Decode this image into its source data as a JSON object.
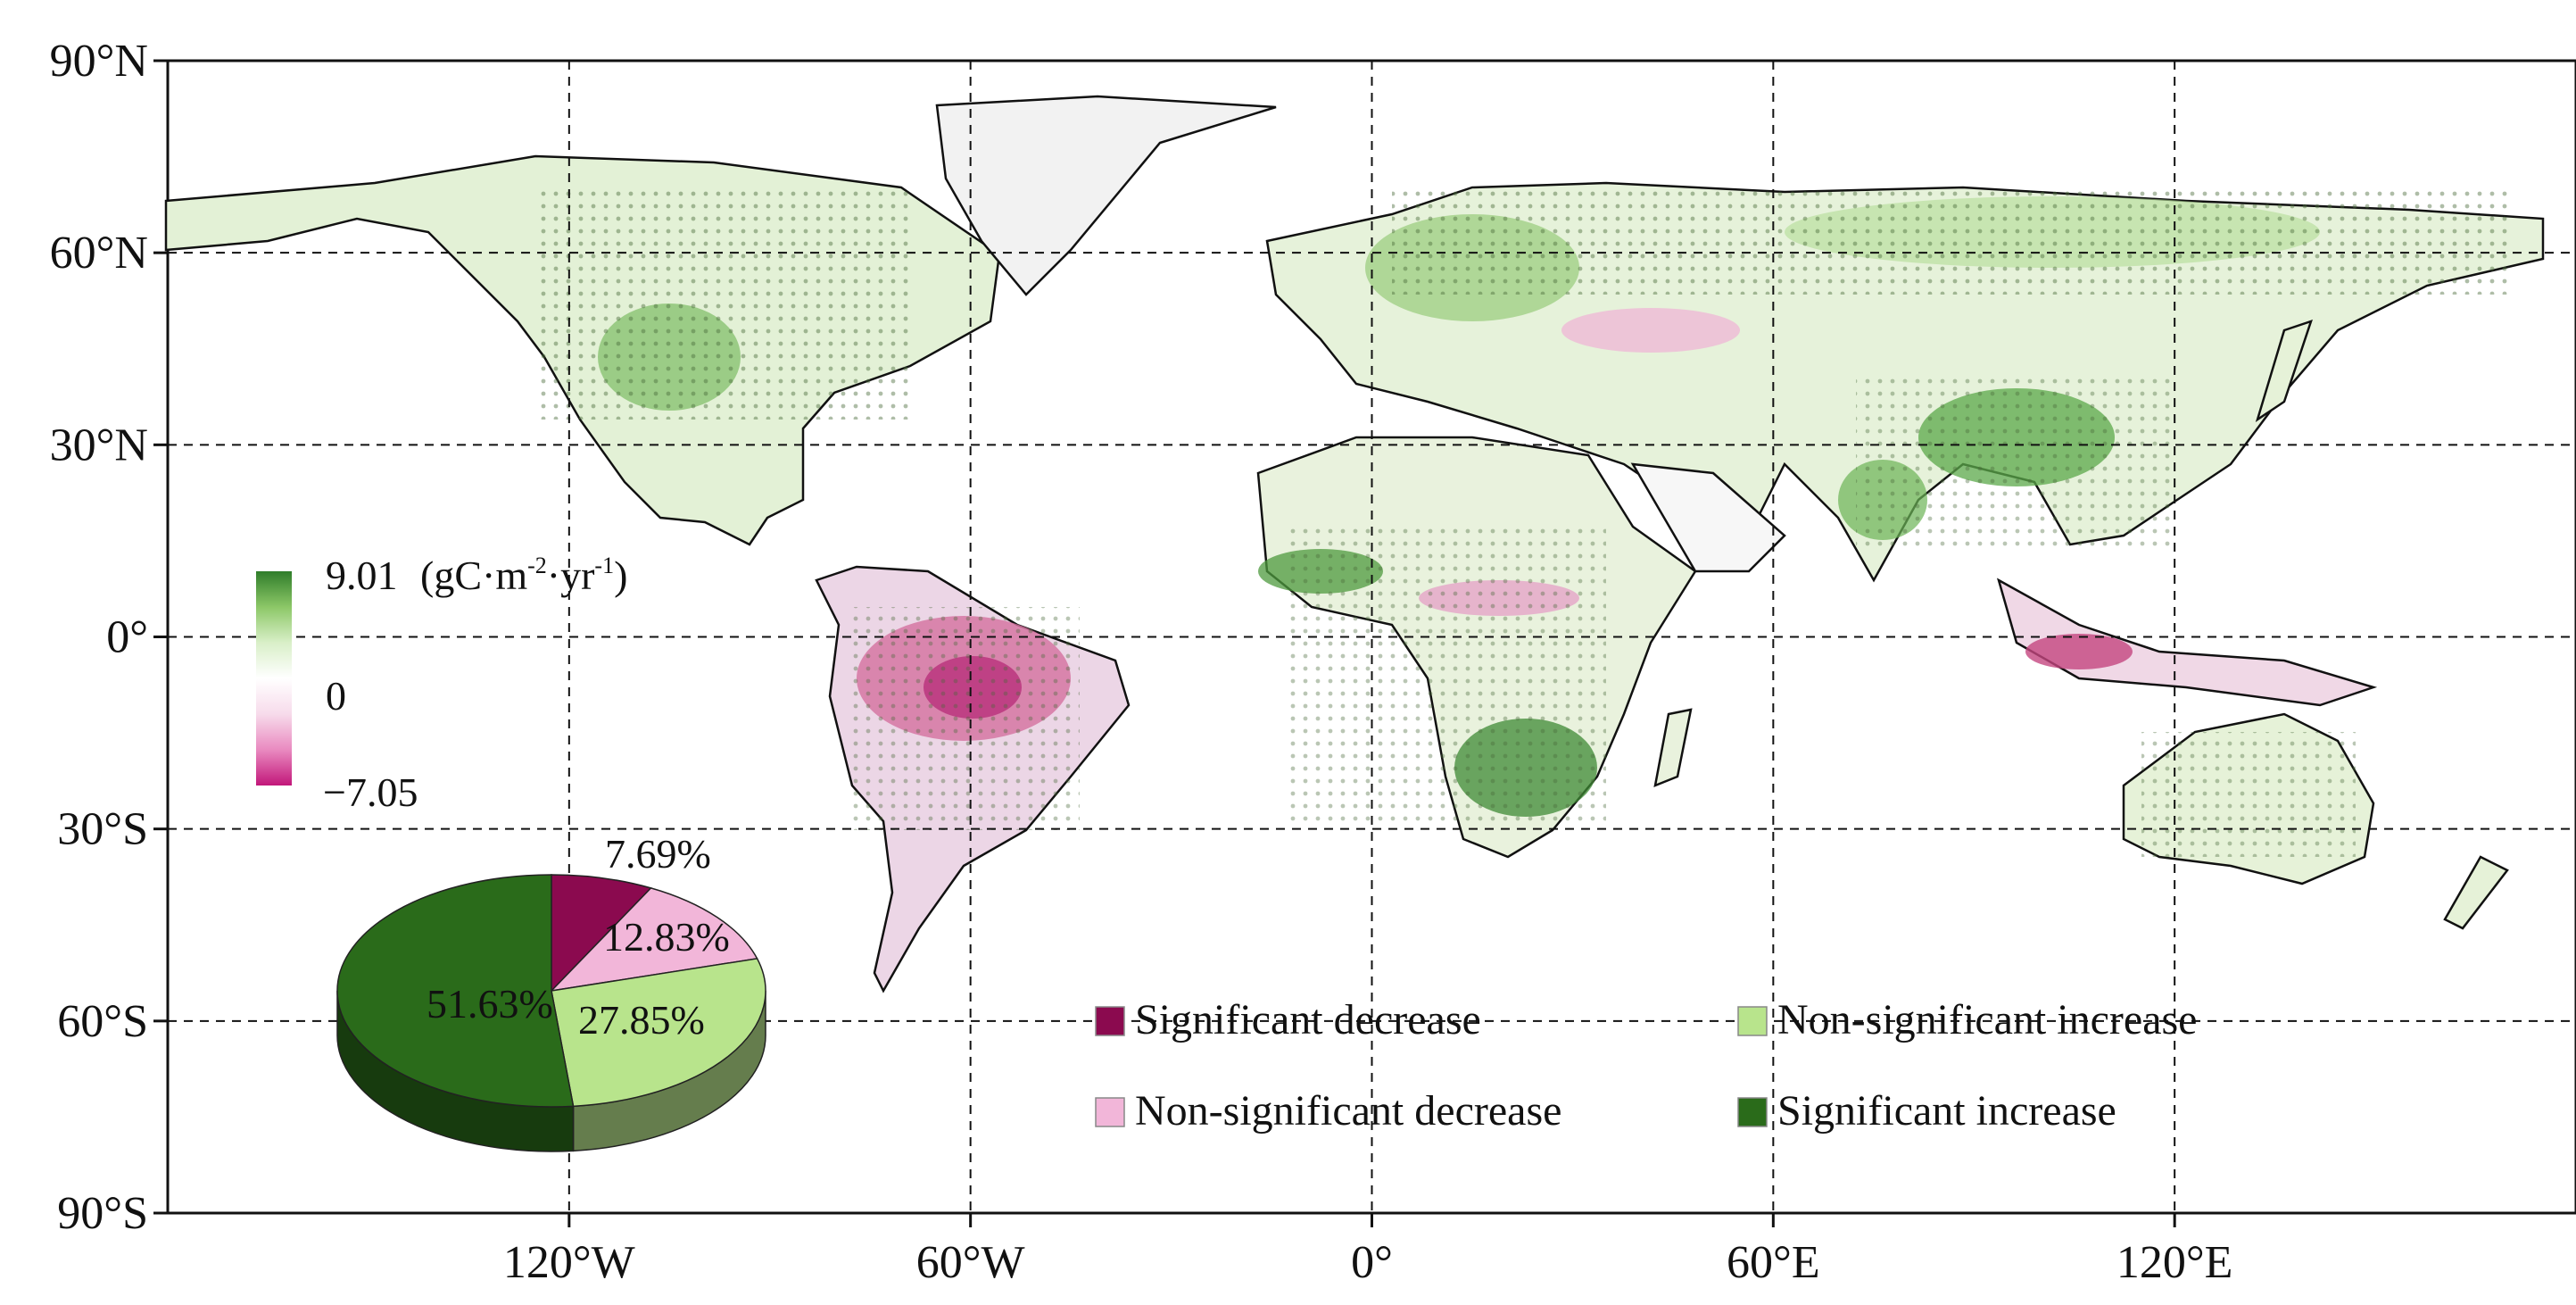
{
  "map": {
    "lat_labels": [
      "90°N",
      "60°N",
      "30°N",
      "0°",
      "30°S",
      "60°S",
      "90°S"
    ],
    "lat_values": [
      90,
      60,
      30,
      0,
      -30,
      -60,
      -90
    ],
    "lon_labels": [
      "120°W",
      "60°W",
      "0°",
      "60°E",
      "120°E"
    ],
    "lon_values": [
      -120,
      -60,
      0,
      60,
      120
    ],
    "extent": {
      "lon": [
        -180,
        180
      ],
      "lat": [
        -90,
        90
      ]
    },
    "grid": "dashed"
  },
  "colorbar": {
    "max_label": "9.01",
    "unit_prefix": "(gC·m",
    "unit_exp1": "-2",
    "unit_mid": "·yr",
    "unit_exp2": "-1",
    "unit_suffix": ")",
    "mid_label": "0",
    "min_label": "−7.05",
    "max_value": 9.01,
    "min_value": -7.05,
    "colors": [
      "#c2177a",
      "#e98ac0",
      "#f7dbeb",
      "#ffffff",
      "#d9efc8",
      "#8cc767",
      "#2f7d2a"
    ]
  },
  "chart_data": {
    "type": "pie",
    "categories": [
      "Significant decrease",
      "Non-significant decrease",
      "Non-significant increase",
      "Significant increase"
    ],
    "values": [
      7.69,
      12.83,
      27.85,
      51.63
    ],
    "labels": [
      "7.69%",
      "12.83%",
      "27.85%",
      "51.63%"
    ],
    "colors": [
      "#8b0a4f",
      "#f2b6d9",
      "#b8e48c",
      "#2a6b1a"
    ],
    "style": "3d"
  },
  "legend": {
    "items": [
      {
        "label": "Significant decrease",
        "color": "#8b0a4f"
      },
      {
        "label": "Non-significant increase",
        "color": "#b8e48c"
      },
      {
        "label": "Non-significant decrease",
        "color": "#f2b6d9"
      },
      {
        "label": "Significant increase",
        "color": "#2a6b1a"
      }
    ]
  }
}
